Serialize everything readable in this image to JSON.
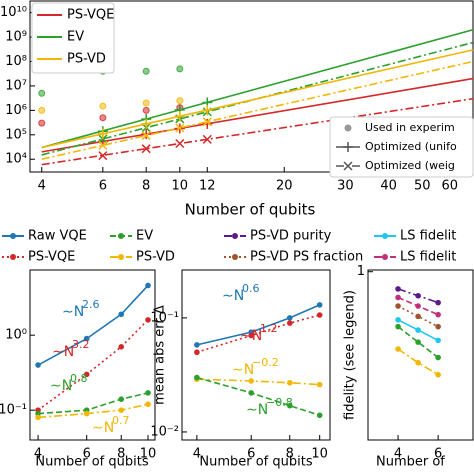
{
  "chart_data": [
    {
      "type": "line",
      "xscale": "log",
      "yscale": "log",
      "xlabel": "Number of qubits",
      "xlim": [
        3.7,
        70
      ],
      "xticks": [
        4,
        6,
        8,
        10,
        12,
        20,
        30,
        40,
        50,
        60
      ],
      "ylim": [
        3000,
        30000000000
      ],
      "yticks": [
        {
          "value": 10000,
          "label": "10⁴"
        },
        {
          "value": 100000,
          "label": "10⁵"
        },
        {
          "value": 1000000,
          "label": "10⁶"
        },
        {
          "value": 10000000,
          "label": "10⁷"
        },
        {
          "value": 100000000,
          "label": "10⁸"
        },
        {
          "value": 1000000000,
          "label": "10⁹"
        },
        {
          "value": 10000000000,
          "label": "10¹⁰"
        }
      ],
      "series": [
        {
          "name": "PS-VQE",
          "color": "#d62728",
          "x": [
            4,
            70
          ],
          "values": [
            20000,
            20000000
          ],
          "optimized_x": [
            6,
            8,
            10,
            12
          ],
          "uniform": [
            53000,
            107000,
            180000,
            280000
          ],
          "weighted_line": [
            6000,
            3000000
          ],
          "weighted": [
            14000,
            27000,
            44000,
            65000
          ],
          "experiment_x": [
            4,
            6,
            8,
            10
          ],
          "experiment": [
            300000,
            500000,
            1000000,
            1300000
          ]
        },
        {
          "name": "EV",
          "color": "#2ca02c",
          "x": [
            4,
            70
          ],
          "values": [
            30000,
            2000000000
          ],
          "optimized_x": [
            6,
            8,
            10,
            12
          ],
          "uniform": [
            140000,
            440000,
            1050000,
            2100000
          ],
          "weighted_line": [
            15000,
            600000000
          ],
          "weighted": [
            67000,
            195000,
            450000,
            870000
          ],
          "experiment_x": [
            4,
            6,
            8,
            10
          ],
          "experiment": [
            5000000,
            40000000,
            40000000,
            50000000
          ]
        },
        {
          "name": "PS-VD",
          "color": "#f2b705",
          "x": [
            4,
            70
          ],
          "values": [
            30000,
            300000000
          ],
          "optimized_x": [
            6,
            8,
            10,
            12
          ],
          "uniform": [
            110000,
            280000,
            570000,
            1000000
          ],
          "weighted_line": [
            10000,
            100000000
          ],
          "weighted": [
            37000,
            93000,
            190000,
            340000
          ],
          "experiment_x": [
            4,
            6,
            8,
            10
          ],
          "experiment": [
            1000000,
            1500000,
            2000000,
            2500000
          ]
        }
      ],
      "style_legend": [
        {
          "label": "Used in experim"
        },
        {
          "label": "Optimized (unifo"
        },
        {
          "label": "Optimized (weig"
        }
      ]
    },
    {
      "type": "line",
      "xscale": "log",
      "yscale": "log",
      "xlabel": "Number of qubits",
      "xlim": [
        3.74,
        10.6
      ],
      "xticks": [
        4,
        6,
        8,
        10
      ],
      "ylim": [
        0.04,
        7.4
      ],
      "yticks": [
        {
          "value": 1,
          "label": "10⁰"
        },
        {
          "value": 0.1,
          "label": "10⁻¹"
        }
      ],
      "x": [
        4,
        6,
        8,
        10
      ],
      "series": [
        {
          "color": "#1f77b4",
          "dash": "solid",
          "values": [
            0.4,
            0.9,
            1.9,
            4.6
          ]
        },
        {
          "color": "#d62728",
          "dash": "dotted",
          "values": [
            0.1,
            0.3,
            0.7,
            1.6
          ]
        },
        {
          "color": "#2ca02c",
          "dash": "dashed",
          "values": [
            0.09,
            0.1,
            0.14,
            0.17
          ]
        },
        {
          "color": "#f2b705",
          "dash": "dashdot",
          "values": [
            0.08,
            0.09,
            0.1,
            0.12
          ]
        }
      ],
      "annotations": [
        {
          "text": "∼N",
          "power": "2.6",
          "color": "#1f77b4"
        },
        {
          "text": "∼N",
          "power": "3.2",
          "color": "#d62728"
        },
        {
          "text": "∼N",
          "power": "0.8",
          "color": "#2ca02c"
        },
        {
          "text": "∼N",
          "power": "0.7",
          "color": "#f2b705"
        }
      ]
    },
    {
      "type": "line",
      "xscale": "log",
      "yscale": "log",
      "xlabel": "Number of qubits",
      "ylabel": "mean abs err Δ",
      "xlim": [
        3.58,
        10.8
      ],
      "xticks": [
        4,
        6,
        8,
        10
      ],
      "ylim": [
        0.0085,
        0.263
      ],
      "yticks": [
        {
          "value": 0.1,
          "label": "10⁻¹"
        },
        {
          "value": 0.01,
          "label": "10⁻²"
        }
      ],
      "x": [
        4,
        6,
        8,
        10
      ],
      "series": [
        {
          "color": "#1f77b4",
          "dash": "solid",
          "values": [
            0.058,
            0.075,
            0.1,
            0.13
          ]
        },
        {
          "color": "#d62728",
          "dash": "dotted",
          "values": [
            0.05,
            0.07,
            0.09,
            0.106
          ]
        },
        {
          "color": "#f2b705",
          "dash": "dashdot",
          "values": [
            0.029,
            0.028,
            0.027,
            0.026
          ]
        },
        {
          "color": "#2ca02c",
          "dash": "dashed",
          "values": [
            0.03,
            0.022,
            0.017,
            0.014
          ]
        }
      ],
      "annotations": [
        {
          "text": "∼N",
          "power": "0.6",
          "color": "#1f77b4"
        },
        {
          "text": "∼N",
          "power": "1.2",
          "color": "#d62728"
        },
        {
          "text": "∼N",
          "power": "−0.2",
          "color": "#f2b705"
        },
        {
          "text": "∼N",
          "power": "−0.8",
          "color": "#2ca02c"
        }
      ]
    },
    {
      "type": "line",
      "xscale": "linear",
      "yscale": "linear",
      "xlabel": "Number of",
      "ylabel": "fidelity (see legend)",
      "xlim": [
        2.5,
        7.74
      ],
      "xticks": [
        4,
        6
      ],
      "ylim": [
        0.02,
        1.01
      ],
      "yticks": [
        1
      ],
      "x": [
        4,
        5,
        6
      ],
      "series": [
        {
          "color": "#5b1a8c",
          "dash": "dashdot",
          "values": [
            0.9,
            0.86,
            0.82
          ]
        },
        {
          "color": "#c0307a",
          "dash": "dashed",
          "values": [
            0.85,
            0.8,
            0.75
          ]
        },
        {
          "color": "#a0522d",
          "dash": "dotted",
          "values": [
            0.8,
            0.74,
            0.68
          ]
        },
        {
          "color": "#1fc6f0",
          "dash": "solid",
          "values": [
            0.72,
            0.66,
            0.6
          ]
        },
        {
          "color": "#2ca02c",
          "dash": "dashed",
          "values": [
            0.68,
            0.59,
            0.5
          ]
        },
        {
          "color": "#f2b705",
          "dash": "dashdot",
          "values": [
            0.55,
            0.47,
            0.4
          ]
        }
      ]
    }
  ],
  "legend": [
    {
      "name": "Raw VQE",
      "color": "#1f77b4",
      "dash": "solid"
    },
    {
      "name": "PS-VQE",
      "color": "#d62728",
      "dash": "dotted"
    },
    {
      "name": "EV",
      "color": "#2ca02c",
      "dash": "dashed"
    },
    {
      "name": "PS-VD",
      "color": "#f2b705",
      "dash": "dashdot"
    },
    {
      "name": "PS-VD purity",
      "color": "#5b1a8c",
      "dash": "dashdot"
    },
    {
      "name": "PS-VD PS fraction",
      "color": "#a0522d",
      "dash": "dotted"
    },
    {
      "name": "LS fidelit",
      "color": "#1fc6f0",
      "dash": "solid"
    },
    {
      "name": "LS fidelit",
      "color": "#c0307a",
      "dash": "dashdot"
    }
  ]
}
